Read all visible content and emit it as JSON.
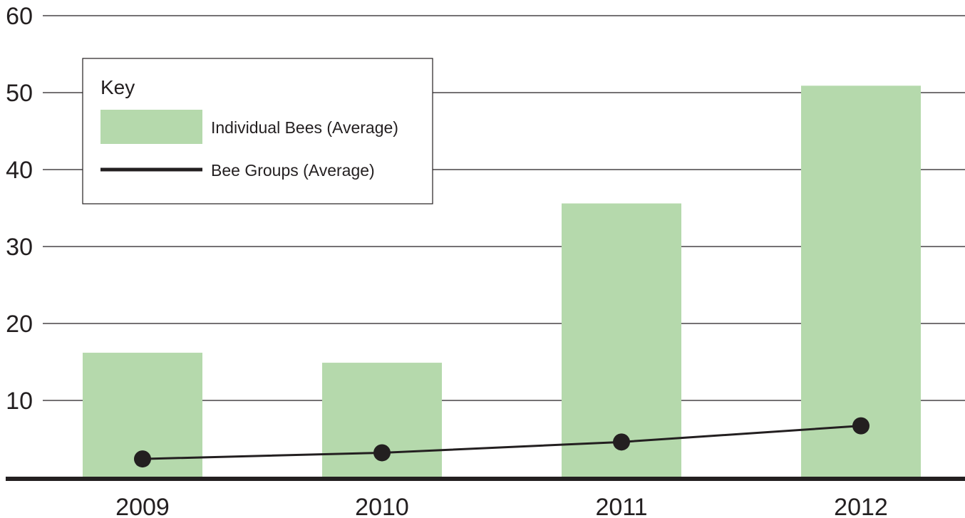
{
  "chart_data": {
    "type": "bar",
    "categories": [
      "2009",
      "2010",
      "2011",
      "2012"
    ],
    "ylim": [
      0,
      60
    ],
    "yticks": [
      10,
      20,
      30,
      40,
      50,
      60
    ],
    "grid": true,
    "legend_position": "top-left",
    "legend_title": "Key",
    "series": [
      {
        "name": "Individual Bees (Average)",
        "kind": "bar",
        "color": "#b5d9ac",
        "values": [
          16.2,
          14.9,
          35.6,
          50.9
        ]
      },
      {
        "name": "Bee Groups (Average)",
        "kind": "line",
        "color": "#231f20",
        "values": [
          2.4,
          3.2,
          4.6,
          6.7
        ]
      }
    ]
  }
}
